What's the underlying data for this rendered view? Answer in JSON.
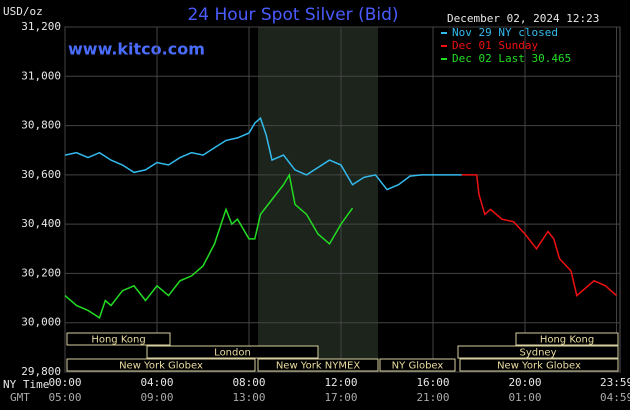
{
  "chart_data": {
    "type": "line",
    "title": "24 Hour Spot Silver (Bid)",
    "y_label": "USD/oz",
    "timestamp": "December 02, 2024 12:23",
    "watermark": "www.kitco.com",
    "x_label": "NY Time",
    "x2_label": "GMT",
    "xlim": [
      0,
      24
    ],
    "xticks": [
      {
        "value": 0,
        "label": "00:00"
      },
      {
        "value": 4,
        "label": "04:00"
      },
      {
        "value": 8,
        "label": "08:00"
      },
      {
        "value": 12,
        "label": "12:00"
      },
      {
        "value": 16,
        "label": "16:00"
      },
      {
        "value": 20,
        "label": "20:00"
      },
      {
        "value": 23.98,
        "label": "23:59"
      }
    ],
    "x2tick_labels": [
      "05:00",
      "09:00",
      "13:00",
      "17:00",
      "21:00",
      "01:00",
      "04:59"
    ],
    "ylim": [
      29800,
      31200
    ],
    "yticks": [
      {
        "value": 29800,
        "label": "29,800"
      },
      {
        "value": 30000,
        "label": "30,000"
      },
      {
        "value": 30200,
        "label": "30,200"
      },
      {
        "value": 30400,
        "label": "30,400"
      },
      {
        "value": 30600,
        "label": "30,600"
      },
      {
        "value": 30800,
        "label": "30,800"
      },
      {
        "value": 31000,
        "label": "31,000"
      },
      {
        "value": 31200,
        "label": "31,200"
      }
    ],
    "grid": true,
    "series": [
      {
        "name": "Nov 29 NY closed",
        "color": "#33bbee",
        "x": [
          0,
          0.5,
          1,
          1.5,
          2,
          2.5,
          3,
          3.5,
          4,
          4.5,
          5,
          5.5,
          6,
          6.5,
          7,
          7.5,
          8,
          8.25,
          8.5,
          8.75,
          9,
          9.5,
          10,
          10.5,
          11,
          11.5,
          12,
          12.5,
          13,
          13.5,
          14,
          14.5,
          15,
          15.5,
          16,
          16.5,
          17,
          17.25
        ],
        "values": [
          30680,
          30690,
          30670,
          30690,
          30660,
          30640,
          30610,
          30620,
          30650,
          30640,
          30670,
          30690,
          30680,
          30710,
          30740,
          30750,
          30770,
          30810,
          30830,
          30760,
          30660,
          30680,
          30620,
          30600,
          30630,
          30660,
          30640,
          30560,
          30590,
          30600,
          30540,
          30560,
          30595,
          30600,
          30600,
          30600,
          30600,
          30600
        ]
      },
      {
        "name": "Dec 01 Sunday",
        "color": "#ee1111",
        "x": [
          17.25,
          17.9,
          18,
          18.25,
          18.5,
          19,
          19.5,
          20,
          20.5,
          21,
          21.25,
          21.5,
          22,
          22.25,
          22.5,
          23,
          23.5,
          23.98
        ],
        "values": [
          30600,
          30600,
          30520,
          30440,
          30460,
          30420,
          30410,
          30360,
          30300,
          30370,
          30340,
          30260,
          30210,
          30110,
          30130,
          30170,
          30150,
          30110
        ]
      },
      {
        "name": "Dec 02 Last 30.465",
        "color": "#22dd22",
        "x": [
          0,
          0.5,
          1,
          1.5,
          1.75,
          2,
          2.5,
          3,
          3.5,
          4,
          4.5,
          5,
          5.5,
          6,
          6.5,
          7,
          7.25,
          7.5,
          8,
          8.25,
          8.5,
          9,
          9.5,
          9.75,
          10,
          10.5,
          11,
          11.5,
          12,
          12.5
        ],
        "values": [
          30110,
          30070,
          30050,
          30020,
          30090,
          30070,
          30130,
          30150,
          30090,
          30150,
          30110,
          30170,
          30190,
          30230,
          30320,
          30460,
          30400,
          30420,
          30340,
          30340,
          30440,
          30500,
          30560,
          30600,
          30480,
          30440,
          30360,
          30320,
          30400,
          30465
        ]
      }
    ],
    "sessions": [
      {
        "label": "Hong Kong"
      },
      {
        "label": "Hong Kong"
      },
      {
        "label": "London"
      },
      {
        "label": "Sydney"
      },
      {
        "label": "New York Globex"
      },
      {
        "label": "New York NYMEX"
      },
      {
        "label": "NY Globex"
      },
      {
        "label": "New York Globex"
      }
    ]
  }
}
